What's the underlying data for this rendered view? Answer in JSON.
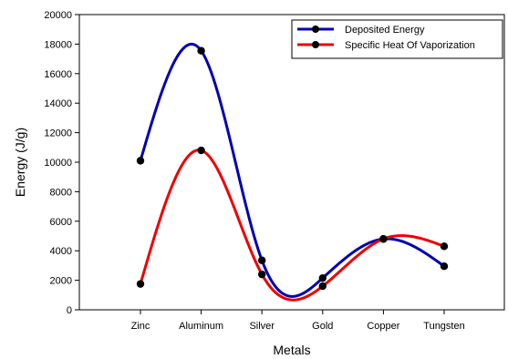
{
  "chart_data": {
    "type": "line",
    "categories": [
      "Zinc",
      "Aluminum",
      "Silver",
      "Gold",
      "Copper",
      "Tungsten"
    ],
    "xlabel": "Metals",
    "ylabel": "Energy (J/g)",
    "ylim": [
      0,
      20000
    ],
    "yticks": [
      0,
      2000,
      4000,
      6000,
      8000,
      10000,
      12000,
      14000,
      16000,
      18000,
      20000
    ],
    "smooth": true,
    "grid": false,
    "legend_position": "top-right",
    "series": [
      {
        "name": "Deposited Energy",
        "color": "#0000b3",
        "values": [
          10100,
          17550,
          3350,
          2150,
          4800,
          2950
        ]
      },
      {
        "name": "Specific Heat Of Vaporization",
        "color": "#ee0000",
        "values": [
          1750,
          10800,
          2400,
          1600,
          4800,
          4300
        ]
      }
    ],
    "marker_color": "#000000"
  }
}
